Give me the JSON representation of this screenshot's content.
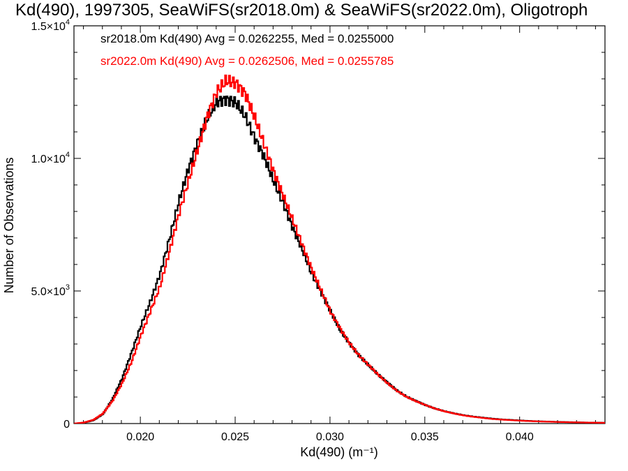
{
  "chart_data": {
    "type": "line",
    "title": "Kd(490), 1997305, SeaWiFS(sr2018.0m) & SeaWiFS(sr2022.0m), Oligotroph",
    "xlabel": "Kd(490) (m⁻¹)",
    "ylabel": "Number of Observations",
    "xlim": [
      0.0165,
      0.0445
    ],
    "ylim": [
      0,
      15000
    ],
    "grid": false,
    "x_ticks": [
      {
        "value": 0.02,
        "label": "0.020"
      },
      {
        "value": 0.025,
        "label": "0.025"
      },
      {
        "value": 0.03,
        "label": "0.030"
      },
      {
        "value": 0.035,
        "label": "0.035"
      },
      {
        "value": 0.04,
        "label": "0.040"
      }
    ],
    "y_ticks": [
      {
        "value": 0,
        "label": "0",
        "exp": ""
      },
      {
        "value": 5000,
        "label": "5.0×10",
        "exp": "3"
      },
      {
        "value": 10000,
        "label": "1.0×10",
        "exp": "4"
      },
      {
        "value": 15000,
        "label": "1.5×10",
        "exp": "4"
      }
    ],
    "legend_position": "top-left",
    "series": [
      {
        "name": "sr2018.0m Kd(490) Avg = 0.0262255, Med = 0.0255000",
        "color": "#000000",
        "x": [
          0.0165,
          0.017,
          0.0175,
          0.018,
          0.0185,
          0.019,
          0.0195,
          0.02,
          0.0205,
          0.021,
          0.0215,
          0.022,
          0.0225,
          0.023,
          0.0235,
          0.024,
          0.0245,
          0.025,
          0.0255,
          0.026,
          0.0265,
          0.027,
          0.0275,
          0.028,
          0.0285,
          0.029,
          0.0295,
          0.03,
          0.0305,
          0.031,
          0.0315,
          0.032,
          0.0325,
          0.033,
          0.0335,
          0.034,
          0.0345,
          0.035,
          0.0355,
          0.036,
          0.0365,
          0.037,
          0.0375,
          0.038,
          0.0385,
          0.039,
          0.0395,
          0.04,
          0.0405,
          0.041,
          0.0415,
          0.042,
          0.0425,
          0.043,
          0.0435,
          0.044,
          0.0445
        ],
        "y": [
          0,
          30,
          120,
          350,
          900,
          1650,
          2600,
          3600,
          4500,
          5500,
          6800,
          8200,
          9400,
          10400,
          11300,
          11900,
          12000,
          11900,
          11400,
          10600,
          9900,
          9000,
          8200,
          7300,
          6500,
          5600,
          4900,
          4200,
          3500,
          3000,
          2550,
          2200,
          1850,
          1550,
          1250,
          1020,
          860,
          700,
          570,
          470,
          390,
          320,
          270,
          230,
          190,
          160,
          140,
          120,
          100,
          85,
          75,
          65,
          55,
          48,
          40,
          35,
          30
        ]
      },
      {
        "name": "sr2022.0m Kd(490) Avg = 0.0262506, Med = 0.0255785",
        "color": "#ff0000",
        "x": [
          0.0165,
          0.017,
          0.0175,
          0.018,
          0.0185,
          0.019,
          0.0195,
          0.02,
          0.0205,
          0.021,
          0.0215,
          0.022,
          0.0225,
          0.023,
          0.0235,
          0.024,
          0.0245,
          0.025,
          0.0255,
          0.026,
          0.0265,
          0.027,
          0.0275,
          0.028,
          0.0285,
          0.029,
          0.0295,
          0.03,
          0.0305,
          0.031,
          0.0315,
          0.032,
          0.0325,
          0.033,
          0.0335,
          0.034,
          0.0345,
          0.035,
          0.0355,
          0.036,
          0.0365,
          0.037,
          0.0375,
          0.038,
          0.0385,
          0.039,
          0.0395,
          0.04,
          0.0405,
          0.041,
          0.0415,
          0.042,
          0.0425,
          0.043,
          0.0435,
          0.044,
          0.0445
        ],
        "y": [
          0,
          40,
          140,
          380,
          850,
          1500,
          2300,
          3300,
          4200,
          5100,
          6400,
          7800,
          9000,
          10200,
          11400,
          12300,
          12700,
          12600,
          12200,
          11300,
          10300,
          9300,
          8400,
          7500,
          6600,
          5700,
          4900,
          4100,
          3500,
          2950,
          2500,
          2150,
          1800,
          1480,
          1200,
          980,
          820,
          680,
          550,
          450,
          370,
          300,
          250,
          210,
          170,
          145,
          125,
          105,
          90,
          78,
          68,
          58,
          50,
          43,
          36,
          31,
          27
        ]
      }
    ]
  }
}
